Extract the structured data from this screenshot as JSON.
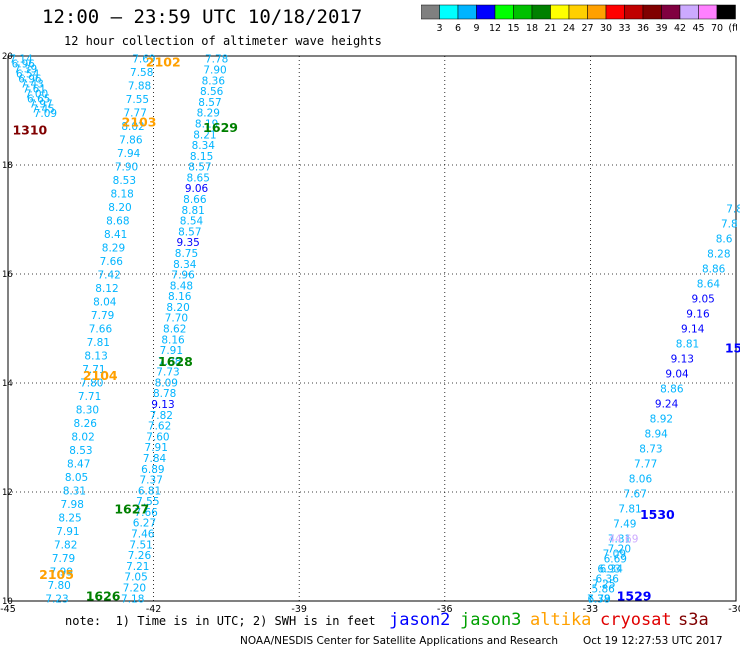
{
  "header": {
    "title": "12:00 – 23:59 UTC 10/18/2017",
    "subtitle": "12 hour collection of altimeter wave heights"
  },
  "colorbar": {
    "labels": [
      "3",
      "6",
      "9",
      "12",
      "15",
      "18",
      "21",
      "24",
      "27",
      "30",
      "33",
      "36",
      "39",
      "42",
      "45",
      "70",
      "(ft)"
    ],
    "colors": [
      "#808080",
      "#00ffff",
      "#00b4ff",
      "#0000ff",
      "#00ff00",
      "#00c000",
      "#008000",
      "#ffff00",
      "#ffd000",
      "#ffa000",
      "#ff0000",
      "#c00000",
      "#800000",
      "#800040",
      "#ccaaff",
      "#ff80ff",
      "#000000"
    ]
  },
  "map": {
    "x_ticks": [
      "-45",
      "-42",
      "-39",
      "-36",
      "-33",
      "-30"
    ],
    "y_ticks": [
      "20",
      "18",
      "16",
      "14",
      "12",
      "10"
    ]
  },
  "tracks": [
    {
      "id": "t1",
      "color": "#00b4ff",
      "start_lon": -44.73,
      "start_lat": 19.95,
      "end_lon": -44.23,
      "end_lat": 18.95,
      "values": [
        "7.14",
        "6.96",
        "7.39",
        "6.54",
        "6.96",
        "7.43",
        "7.61",
        "7.00",
        "6.65",
        "7.97",
        "7.45",
        "7.09"
      ]
    },
    {
      "id": "t2",
      "color": "#00b4ff",
      "start_lon": -42.2,
      "start_lat": 19.95,
      "end_lon": -43.99,
      "end_lat": 10.05,
      "values": [
        "7.69",
        "7.58",
        "7.88",
        "7.55",
        "7.77",
        "8.02",
        "7.86",
        "7.94",
        "7.90",
        "8.53",
        "8.18",
        "8.20",
        "8.68",
        "8.41",
        "8.29",
        "7.66",
        "7.42",
        "8.12",
        "8.04",
        "7.79",
        "7.66",
        "7.81",
        "8.13",
        "7.71",
        "7.80",
        "7.71",
        "8.30",
        "8.26",
        "8.02",
        "8.53",
        "8.47",
        "8.05",
        "8.31",
        "7.98",
        "8.25",
        "7.91",
        "7.82",
        "7.79",
        "7.99",
        "7.80",
        "7.23"
      ]
    },
    {
      "id": "t3",
      "color": "#00b4ff",
      "start_lon": -40.7,
      "start_lat": 19.95,
      "end_lon": -42.43,
      "end_lat": 10.05,
      "values": [
        "7.78",
        "7.90",
        "8.36",
        "8.56",
        "8.57",
        "8.29",
        "8.19",
        "8.21",
        "8.34",
        "8.15",
        "8.57",
        "8.65",
        "9.06",
        "8.66",
        "8.81",
        "8.54",
        "8.57",
        "9.35",
        "8.75",
        "8.34",
        "7.96",
        "8.48",
        "8.16",
        "8.20",
        "7.70",
        "8.62",
        "8.16",
        "7.91",
        "7.38",
        "7.73",
        "8.09",
        "8.78",
        "9.13",
        "7.82",
        "7.62",
        "7.60",
        "7.91",
        "7.84",
        "6.89",
        "7.37",
        "6.81",
        "7.55",
        "7.66",
        "6.27",
        "7.46",
        "7.51",
        "7.26",
        "7.21",
        "7.05",
        "7.20",
        "7.18"
      ]
    },
    {
      "id": "t4",
      "color": "#00b4ff",
      "start_lon": -30.03,
      "start_lat": 17.2,
      "end_lon": -32.83,
      "end_lat": 10.05,
      "values": [
        "7.8",
        "7.8",
        "8.6",
        "8.28",
        "8.86",
        "8.64",
        "9.05",
        "9.16",
        "9.14",
        "8.81",
        "9.13",
        "9.04",
        "8.86",
        "9.24",
        "8.92",
        "8.94",
        "8.73",
        "7.77",
        "8.06",
        "7.67",
        "7.81",
        "7.49",
        "7.31",
        "7.09",
        "6.93",
        "7.25",
        "7.38"
      ]
    },
    {
      "id": "t5",
      "color": "#00b4ff",
      "start_lon": -32.32,
      "start_lat": 11.15,
      "end_lon": -32.82,
      "end_lat": 10.05,
      "values": [
        "44.69",
        "7.20",
        "6.69",
        "6.34",
        "6.36",
        "5.86",
        "6.79"
      ]
    }
  ],
  "time_labels": [
    {
      "text": "2102",
      "color": "#ffa000",
      "lon": -41.8,
      "lat": 19.9
    },
    {
      "text": "1310",
      "color": "#800000",
      "lon": -44.55,
      "lat": 18.65
    },
    {
      "text": "2103",
      "color": "#ffa000",
      "lon": -42.3,
      "lat": 18.8
    },
    {
      "text": "1629",
      "color": "#008000",
      "lon": -40.62,
      "lat": 18.7
    },
    {
      "text": "1628",
      "color": "#008000",
      "lon": -41.55,
      "lat": 14.4
    },
    {
      "text": "2104",
      "color": "#ffa000",
      "lon": -43.1,
      "lat": 14.15
    },
    {
      "text": "1627",
      "color": "#008000",
      "lon": -42.45,
      "lat": 11.7
    },
    {
      "text": "2105",
      "color": "#ffa000",
      "lon": -44.0,
      "lat": 10.5
    },
    {
      "text": "1626",
      "color": "#008000",
      "lon": -43.04,
      "lat": 10.1
    },
    {
      "text": "1530",
      "color": "#0000ff",
      "lon": -31.62,
      "lat": 11.6
    },
    {
      "text": "1529",
      "color": "#0000ff",
      "lon": -32.1,
      "lat": 10.1
    },
    {
      "text": "15",
      "color": "#0000ff",
      "lon": -30.05,
      "lat": 14.65
    }
  ],
  "notes": {
    "note": "note:  1) Time is in UTC; 2) SWH is in feet",
    "legend": [
      {
        "label": "jason2",
        "color": "#0000ff"
      },
      {
        "label": "jason3",
        "color": "#00a000"
      },
      {
        "label": "altika",
        "color": "#ffa000"
      },
      {
        "label": "cryosat",
        "color": "#e00000"
      },
      {
        "label": "s3a",
        "color": "#800000"
      }
    ]
  },
  "footer": {
    "center": "NOAA/NESDIS Center for Satellite Applications and Research",
    "timestamp": "Oct 19 12:27:53 UTC 2017"
  }
}
